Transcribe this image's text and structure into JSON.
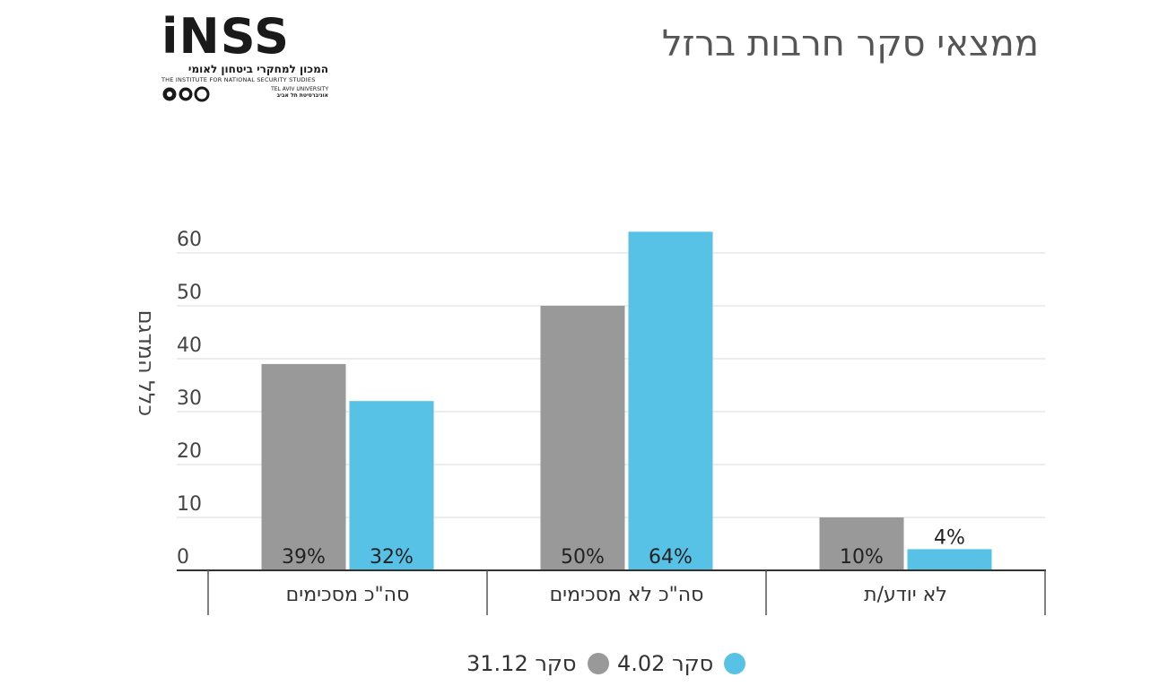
{
  "title": "ממצאי סקר חרבות ברזל",
  "logo": {
    "name": "iNSS",
    "hebrew_name": "המכון למחקרי ביטחון לאומי",
    "english_name": "THE INSTITUTE FOR NATIONAL SECURITY STUDIES",
    "university_en": "TEL AVIV UNIVERSITY",
    "university_he": "אוניברסיטת תל אביב"
  },
  "colors": {
    "series1": "#999999",
    "series2": "#57c2e6",
    "grid": "#d9d9d9",
    "axis": "#333333"
  },
  "chart_data": {
    "type": "bar",
    "ylabel": "כלל המדגם",
    "xlabel": "",
    "ylim": [
      0,
      60
    ],
    "yticks": [
      0,
      10,
      20,
      30,
      40,
      50,
      60
    ],
    "grid": true,
    "legend_position": "bottom-center",
    "categories": [
      "סה\"כ מסכימים",
      "סה\"כ לא מסכימים",
      "לא יודע/ת"
    ],
    "series": [
      {
        "name": "סקר 31.12",
        "values": [
          39,
          50,
          10
        ],
        "labels": [
          "39%",
          "50%",
          "10%"
        ]
      },
      {
        "name": "סקר 4.02",
        "values": [
          32,
          64,
          4
        ],
        "labels": [
          "32%",
          "64%",
          "4%"
        ]
      }
    ]
  }
}
